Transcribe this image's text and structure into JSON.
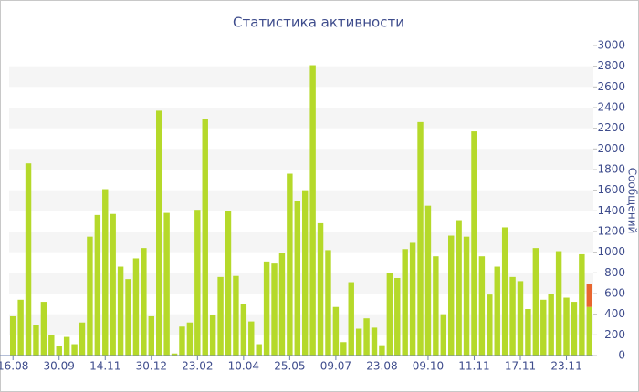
{
  "chart_data": {
    "type": "bar",
    "title": "Статистика активности",
    "y_label": "Сообщений",
    "categories": [
      "16.08",
      null,
      null,
      null,
      null,
      null,
      "30.09",
      null,
      null,
      null,
      null,
      null,
      "14.11",
      null,
      null,
      null,
      null,
      null,
      "30.12",
      null,
      null,
      null,
      null,
      null,
      "23.02",
      null,
      null,
      null,
      null,
      null,
      "10.04",
      null,
      null,
      null,
      null,
      null,
      "25.05",
      null,
      null,
      null,
      null,
      null,
      "09.07",
      null,
      null,
      null,
      null,
      null,
      "23.08",
      null,
      null,
      null,
      null,
      null,
      "09.10",
      null,
      null,
      null,
      null,
      null,
      "11.11",
      null,
      null,
      null,
      null,
      null,
      "17.11",
      null,
      null,
      null,
      null,
      null,
      "23.11",
      null,
      null,
      null
    ],
    "series": [
      {
        "color": "#b5d92a",
        "values": [
          380,
          540,
          1860,
          300,
          520,
          200,
          90,
          180,
          110,
          320,
          1150,
          1360,
          1610,
          1370,
          860,
          740,
          940,
          1040,
          380,
          2370,
          1380,
          20,
          280,
          320,
          1410,
          2290,
          390,
          760,
          1400,
          770,
          500,
          330,
          110,
          910,
          890,
          990,
          1760,
          1500,
          1600,
          2810,
          1280,
          1020,
          470,
          130,
          710,
          260,
          360,
          270,
          100,
          800,
          750,
          1030,
          1090,
          2260,
          1450,
          960,
          400,
          1160,
          1310,
          1150,
          2170,
          960,
          590,
          860,
          1240,
          760,
          720,
          450,
          1040,
          540,
          600,
          1010,
          560,
          520,
          980,
          470
        ]
      },
      {
        "color": "#e8662f",
        "values": [
          null,
          null,
          null,
          null,
          null,
          null,
          null,
          null,
          null,
          null,
          null,
          null,
          null,
          null,
          null,
          null,
          null,
          null,
          null,
          null,
          null,
          null,
          null,
          null,
          null,
          null,
          null,
          null,
          null,
          null,
          null,
          null,
          null,
          null,
          null,
          null,
          null,
          null,
          null,
          null,
          null,
          null,
          null,
          null,
          null,
          null,
          null,
          null,
          null,
          null,
          null,
          null,
          null,
          null,
          null,
          null,
          null,
          null,
          null,
          null,
          null,
          null,
          null,
          null,
          null,
          null,
          null,
          null,
          null,
          null,
          null,
          null,
          null,
          null,
          null,
          220
        ]
      }
    ],
    "ylim": [
      0,
      3000
    ],
    "yticks": [
      0,
      200,
      400,
      600,
      800,
      1000,
      1200,
      1400,
      1600,
      1800,
      2000,
      2200,
      2400,
      2600,
      2800,
      3000
    ],
    "stacked": true
  }
}
